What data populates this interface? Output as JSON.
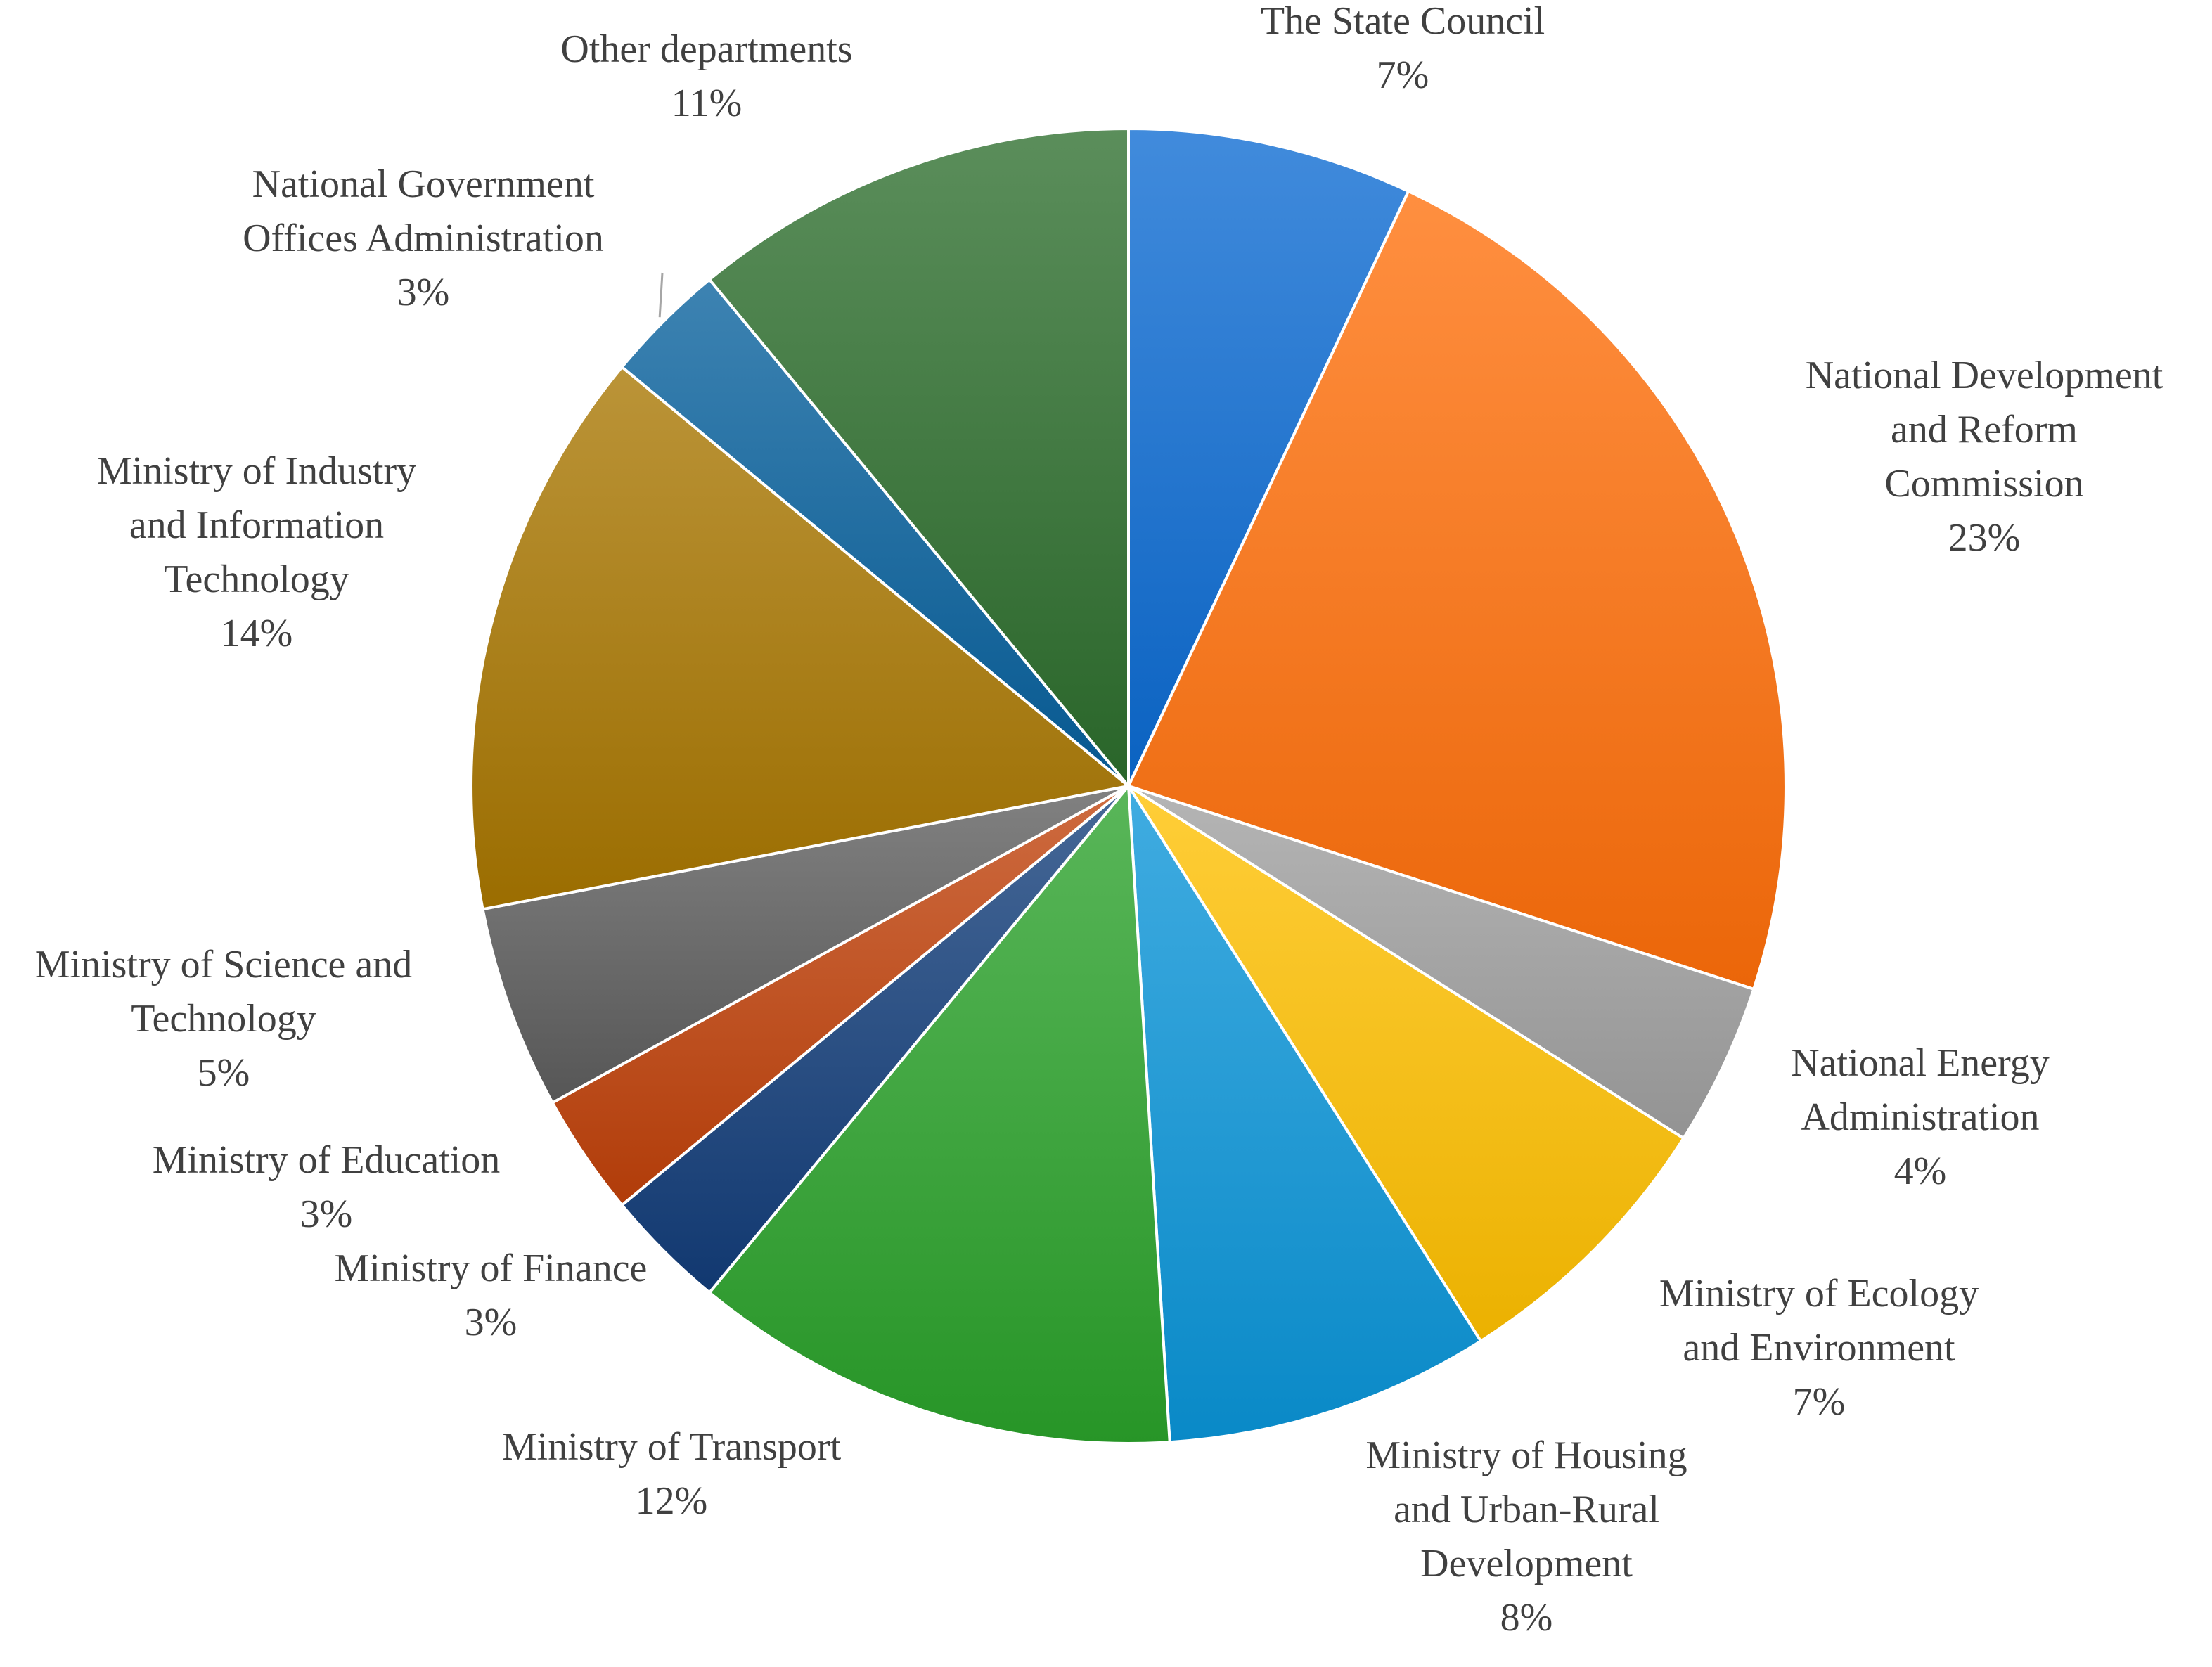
{
  "chart_data": {
    "type": "pie",
    "start_angle_deg": 0,
    "direction": "clockwise",
    "categories": [
      "The State Council",
      "National Development and Reform Commission",
      "National Energy Administration",
      "Ministry of Ecology and Environment",
      "Ministry of Housing and Urban-Rural Development",
      "Ministry of Transport",
      "Ministry of Finance",
      "Ministry of Education",
      "Ministry of Science and Technology",
      "Ministry of Industry and Information Technology",
      "National Government Offices Administration",
      "Other departments"
    ],
    "values": [
      7,
      23,
      4,
      7,
      8,
      12,
      3,
      3,
      5,
      14,
      3,
      11
    ],
    "slices": [
      {
        "name": "The State Council",
        "label_lines": [
          "The State Council"
        ],
        "pct": "7%",
        "value": 7,
        "color": "#0b6ad2"
      },
      {
        "name": "National Development and Reform Commission",
        "label_lines": [
          "National Development",
          "and Reform",
          "Commission"
        ],
        "pct": "23%",
        "value": 23,
        "color": "#ff6f0a"
      },
      {
        "name": "National Energy Administration",
        "label_lines": [
          "National Energy",
          "Administration"
        ],
        "pct": "4%",
        "value": 4,
        "color": "#a0a0a0"
      },
      {
        "name": "Ministry of Ecology and Environment",
        "label_lines": [
          "Ministry of Ecology",
          "and Environment"
        ],
        "pct": "7%",
        "value": 7,
        "color": "#ffc000"
      },
      {
        "name": "Ministry of Housing and Urban-Rural Development",
        "label_lines": [
          "Ministry of Housing",
          "and Urban-Rural",
          "Development"
        ],
        "pct": "8%",
        "value": 8,
        "color": "#0a95d8"
      },
      {
        "name": "Ministry of Transport",
        "label_lines": [
          "Ministry of Transport"
        ],
        "pct": "12%",
        "value": 12,
        "color": "#2aa22a"
      },
      {
        "name": "Ministry of Finance",
        "label_lines": [
          "Ministry of Finance"
        ],
        "pct": "3%",
        "value": 3,
        "color": "#123d7a"
      },
      {
        "name": "Ministry of Education",
        "label_lines": [
          "Ministry of Education"
        ],
        "pct": "3%",
        "value": 3,
        "color": "#c0410a"
      },
      {
        "name": "Ministry of Science and Technology",
        "label_lines": [
          "Ministry of Science and",
          "Technology"
        ],
        "pct": "5%",
        "value": 5,
        "color": "#5e5e5e"
      },
      {
        "name": "Ministry of Industry and Information Technology",
        "label_lines": [
          "Ministry of Industry",
          "and Information",
          "Technology"
        ],
        "pct": "14%",
        "value": 14,
        "color": "#a87600"
      },
      {
        "name": "National Government Offices Administration",
        "label_lines": [
          "National Government",
          "Offices Administration"
        ],
        "pct": "3%",
        "value": 3,
        "color": "#06609c"
      },
      {
        "name": "Other departments",
        "label_lines": [
          "Other departments"
        ],
        "pct": "11%",
        "value": 11,
        "color": "#2d6e2d"
      }
    ],
    "legend": "none"
  }
}
